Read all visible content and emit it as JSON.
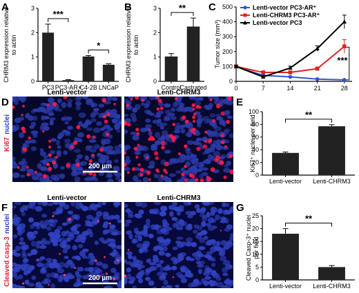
{
  "panels": {
    "A": "A",
    "B": "B",
    "C": "C",
    "D": "D",
    "E": "E",
    "F": "F",
    "G": "G"
  },
  "colors": {
    "bar": "#222222",
    "red_nuclei": "#ff1a4a",
    "blue_nuclei": "#1a2a9a",
    "tissue_bg": "#05082a",
    "series_blue": "#3355cc",
    "series_red": "#e02020",
    "series_black": "#000000"
  },
  "micro": {
    "lenti_vector": "Lenti-vector",
    "lenti_chrm3": "Lenti-CHRM3",
    "stain_D_red": "Ki67",
    "stain_D_blue": "nuclei",
    "stain_F_red": "Cleaved casp-3",
    "stain_F_blue": "nuclei",
    "scale_bar": "200 µm"
  },
  "chart_data": [
    {
      "panel": "A",
      "type": "bar",
      "categories": [
        "PC3",
        "PC3-AR+",
        "C4-2B",
        "LNCaP"
      ],
      "values": [
        2.0,
        0.05,
        1.02,
        0.68
      ],
      "errors": [
        0.35,
        0.02,
        0.04,
        0.04
      ],
      "ylabel": "CHRM3 expression relative to actin",
      "ylim": [
        0,
        3
      ],
      "yticks": [
        "0",
        "1",
        "2",
        "3"
      ],
      "significance": [
        {
          "from": 0,
          "to": 1,
          "label": "***"
        },
        {
          "from": 2,
          "to": 3,
          "label": "*"
        }
      ]
    },
    {
      "panel": "B",
      "type": "bar",
      "categories": [
        "Control",
        "Castrated"
      ],
      "values": [
        1.02,
        2.25
      ],
      "errors": [
        0.12,
        0.35
      ],
      "ylabel": "CHRM3 expression relative to actin",
      "ylim": [
        0,
        3
      ],
      "yticks": [
        "0",
        "1",
        "2",
        "3"
      ],
      "significance": [
        {
          "from": 0,
          "to": 1,
          "label": "**"
        }
      ]
    },
    {
      "panel": "C",
      "type": "line",
      "x": [
        0,
        7,
        14,
        21,
        28
      ],
      "xticks": [
        "0",
        "7",
        "14",
        "21",
        "28"
      ],
      "series": [
        {
          "name": "Lenti-vector PC3-AR⁺",
          "color": "#3355cc",
          "marker": "circle",
          "values": [
            100,
            40,
            30,
            15,
            10
          ]
        },
        {
          "name": "Lenti-CHRM3 PC3-AR⁺",
          "color": "#e02020",
          "marker": "square",
          "values": [
            100,
            60,
            60,
            85,
            235
          ]
        },
        {
          "name": "Lenti-vector PC3",
          "color": "#000000",
          "marker": "triangle",
          "values": [
            100,
            30,
            90,
            220,
            400
          ]
        }
      ],
      "errors": [
        [
          8,
          5,
          5,
          4,
          3
        ],
        [
          8,
          10,
          10,
          12,
          45
        ],
        [
          8,
          8,
          12,
          18,
          45
        ]
      ],
      "ylabel": "Tumor size (mm³)",
      "ylim": [
        0,
        500
      ],
      "yticks": [
        "0",
        "100",
        "200",
        "300",
        "400",
        "500"
      ],
      "significance": [
        {
          "label": "***"
        }
      ]
    },
    {
      "panel": "E",
      "type": "bar",
      "categories": [
        "Lenti-vector",
        "Lenti-CHRM3"
      ],
      "values": [
        35,
        77
      ],
      "errors": [
        1.5,
        2.5
      ],
      "ylabel": "Ki67⁺ nuclei per field",
      "ylim": [
        0,
        100
      ],
      "yticks": [
        "0",
        "20",
        "40",
        "60",
        "80",
        "100"
      ],
      "significance": [
        {
          "from": 0,
          "to": 1,
          "label": "**"
        }
      ]
    },
    {
      "panel": "G",
      "type": "bar",
      "categories": [
        "Lenti-vector",
        "Lenti-CHRM3"
      ],
      "values": [
        18,
        5
      ],
      "errors": [
        2,
        0.6
      ],
      "ylabel": "Cleaved Casp-3⁺ nuclei per field",
      "ylim": [
        0,
        25
      ],
      "yticks": [
        "0",
        "5",
        "10",
        "15",
        "20",
        "25"
      ],
      "significance": [
        {
          "from": 0,
          "to": 1,
          "label": "**"
        }
      ]
    }
  ]
}
